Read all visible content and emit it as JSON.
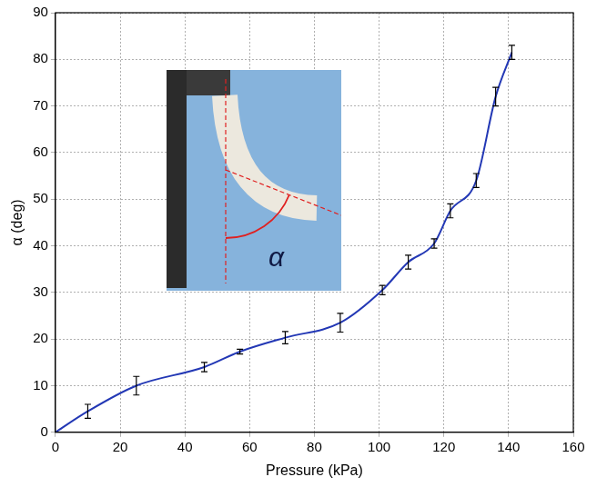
{
  "chart_data": {
    "type": "line",
    "x_label": "Pressure (kPa)",
    "y_label": "α (deg)",
    "annotations": [
      "α"
    ],
    "x": [
      0,
      10,
      25,
      46,
      57,
      71,
      88,
      101,
      109,
      117,
      122,
      130,
      136,
      141
    ],
    "values": [
      0,
      4.5,
      10,
      14,
      17.3,
      20.3,
      23.5,
      30.5,
      36.5,
      40.5,
      47.5,
      54,
      72,
      81.5
    ],
    "errors": [
      null,
      1.5,
      2,
      1,
      0.5,
      1.3,
      2,
      1,
      1.5,
      1,
      1.5,
      1.5,
      2,
      1.5
    ],
    "color": "#2338b5",
    "marker": "none",
    "line_style": "solid",
    "xlim": [
      0,
      160
    ],
    "xticks": [
      0,
      20,
      40,
      60,
      80,
      100,
      120,
      140,
      160
    ],
    "ylim": [
      0,
      90
    ],
    "yticks": [
      0,
      10,
      20,
      30,
      40,
      50,
      60,
      70,
      80,
      90
    ],
    "grid": true
  }
}
